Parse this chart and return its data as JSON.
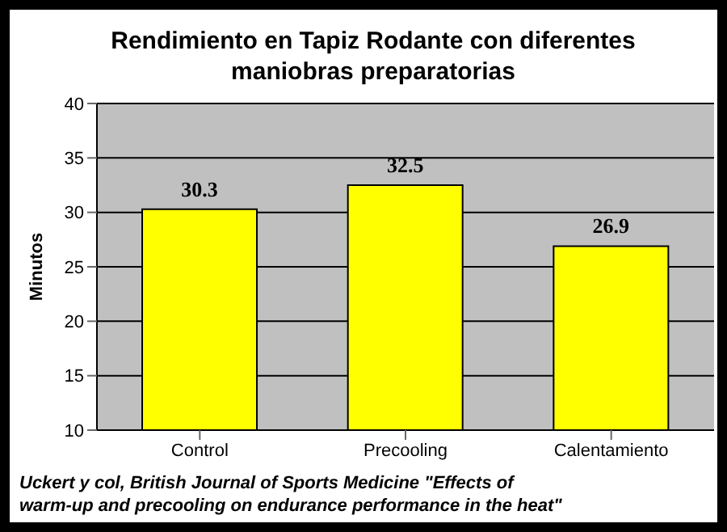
{
  "chart_data": {
    "type": "bar",
    "title": "Rendimiento en Tapiz Rodante con diferentes maniobras preparatorias",
    "ylabel": "Minutos",
    "categories": [
      "Control",
      "Precooling",
      "Calentamiento"
    ],
    "values": [
      30.3,
      32.5,
      26.9
    ],
    "color": "#ffff00",
    "ylim": [
      10,
      40
    ],
    "yticks": [
      10,
      15,
      20,
      25,
      30,
      35,
      40
    ],
    "grid": "y",
    "data_labels": true,
    "annotations": [
      "Uckert y col, British Journal of Sports Medicine \"Effects of warm-up and precooling on endurance performance in the heat\""
    ]
  }
}
